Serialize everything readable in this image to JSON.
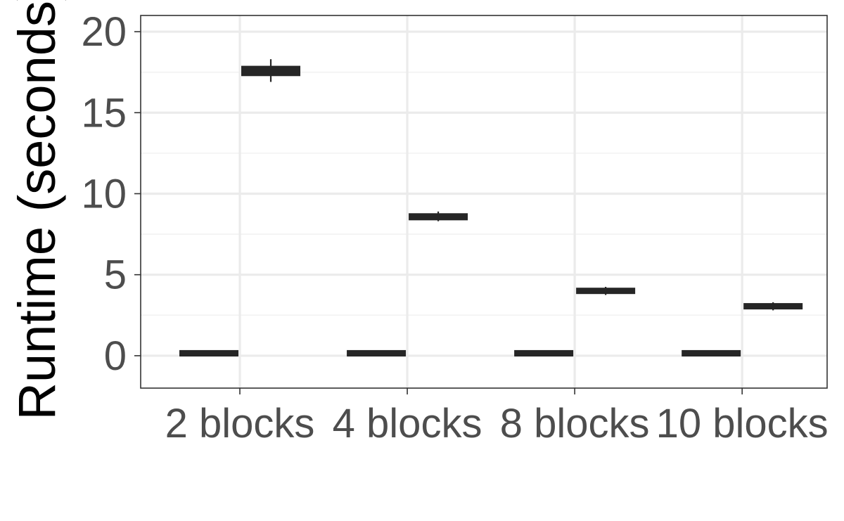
{
  "chart_data": {
    "type": "box",
    "categories": [
      "2 blocks",
      "4 blocks",
      "8 blocks",
      "10 blocks"
    ],
    "ylabel": "Runtime (seconds)",
    "xlabel": "",
    "ylim": [
      -2,
      21
    ],
    "yticks": [
      0,
      5,
      10,
      15,
      20
    ],
    "grid": true,
    "legend": "none",
    "series": [
      {
        "boxes": [
          {
            "category": "2 blocks",
            "q1": 0.0,
            "median": 0.02,
            "q3": 0.05,
            "min": -0.02,
            "max": 0.08
          },
          {
            "category": "4 blocks",
            "q1": 0.0,
            "median": 0.02,
            "q3": 0.05,
            "min": -0.02,
            "max": 0.08
          },
          {
            "category": "8 blocks",
            "q1": 0.0,
            "median": 0.02,
            "q3": 0.05,
            "min": -0.02,
            "max": 0.08
          },
          {
            "category": "10 blocks",
            "q1": 0.0,
            "median": 0.02,
            "q3": 0.05,
            "min": -0.02,
            "max": 0.08
          }
        ]
      },
      {
        "boxes": [
          {
            "category": "2 blocks",
            "q1": 17.3,
            "median": 17.6,
            "q3": 17.85,
            "min": 16.9,
            "max": 18.3
          },
          {
            "category": "4 blocks",
            "q1": 8.4,
            "median": 8.6,
            "q3": 8.75,
            "min": 8.3,
            "max": 8.9
          },
          {
            "category": "8 blocks",
            "q1": 3.85,
            "median": 4.0,
            "q3": 4.15,
            "min": 3.75,
            "max": 4.25
          },
          {
            "category": "10 blocks",
            "q1": 2.9,
            "median": 3.05,
            "q3": 3.2,
            "min": 2.8,
            "max": 3.3
          }
        ]
      }
    ],
    "colors": {
      "box": "#262626",
      "grid_major": "#ebebeb",
      "grid_minor": "#f2f2f2",
      "border": "#333333",
      "tick_text": "#4d4d4d",
      "title_text": "#000000"
    }
  }
}
